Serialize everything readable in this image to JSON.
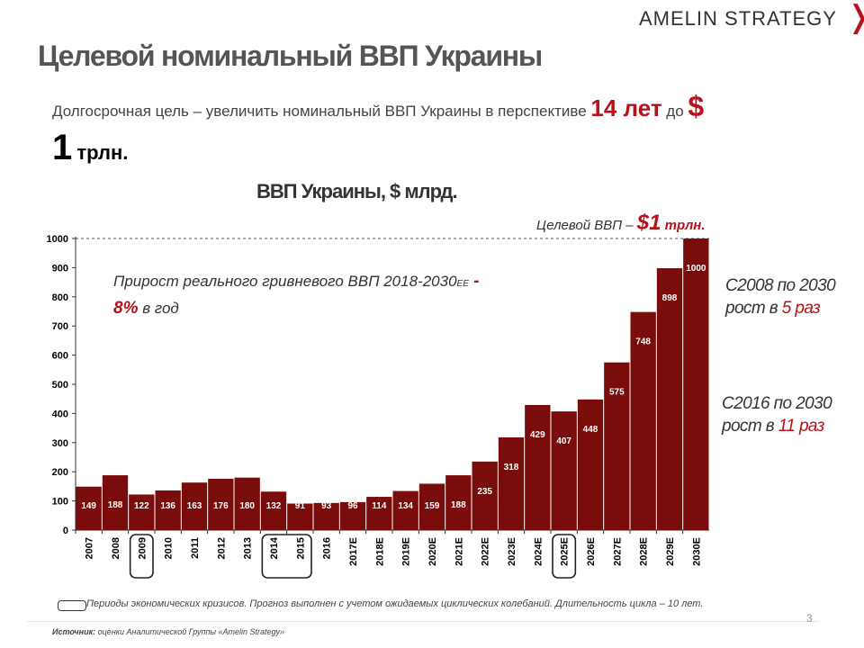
{
  "brand": {
    "name": "AMELIN STRATEGY",
    "chevron": "❭",
    "accent_color": "#b5121b"
  },
  "header": {
    "title": "Целевой номинальный ВВП Украины"
  },
  "subtitle": {
    "part1": "Долгосрочная цель – увеличить номинальный ВВП Украины  в перспективе ",
    "years": "14 лет",
    "part2": " до ",
    "dollar": "$",
    "amount": "1",
    "unit": " трлн."
  },
  "target_label": {
    "text": "Целевой ВВП – ",
    "value": "$1",
    "unit": " трлн."
  },
  "growth_note": {
    "line1": "Прирост реального гривневого ВВП 2018-2030",
    "suffix": "ЕЕ",
    "dash": " -",
    "value": "8%",
    "tail": " в год"
  },
  "side_notes": {
    "note1": {
      "prefix": "С2008 по 2030 рост в ",
      "value": "5",
      "suffix": " раз"
    },
    "note2": {
      "prefix": "С2016 по 2030 рост в ",
      "value": "11",
      "suffix": " раз"
    }
  },
  "footnote": "Периоды экономических кризисов. Прогноз выполнен с учетом ожидаемых циклических колебаний. Длительность цикла – 10 лет.",
  "source": {
    "label": "Источник:",
    "text": " оценки Аналитической Группы «Amelin Strategy»"
  },
  "page_number": "3",
  "chart_data": {
    "type": "bar",
    "title": "ВВП Украины, $ млрд.",
    "categories": [
      "2007",
      "2008",
      "2009",
      "2010",
      "2011",
      "2012",
      "2013",
      "2014",
      "2015",
      "2016",
      "2017E",
      "2018E",
      "2019E",
      "2020E",
      "2021E",
      "2022E",
      "2023E",
      "2024E",
      "2025E",
      "2026E",
      "2027E",
      "2028E",
      "2029E",
      "2030E"
    ],
    "values": [
      149,
      188,
      122,
      136,
      163,
      176,
      180,
      132,
      91,
      93,
      96,
      114,
      134,
      159,
      188,
      235,
      318,
      429,
      407,
      448,
      575,
      748,
      898,
      1000
    ],
    "ylim": [
      0,
      1000
    ],
    "yticks": [
      0,
      100,
      200,
      300,
      400,
      500,
      600,
      700,
      800,
      900,
      1000
    ],
    "target_line": 1000,
    "crisis_periods": [
      [
        "2009"
      ],
      [
        "2014",
        "2015"
      ],
      [
        "2025E"
      ]
    ],
    "bar_color": "#7b0c0c",
    "grid": false
  }
}
